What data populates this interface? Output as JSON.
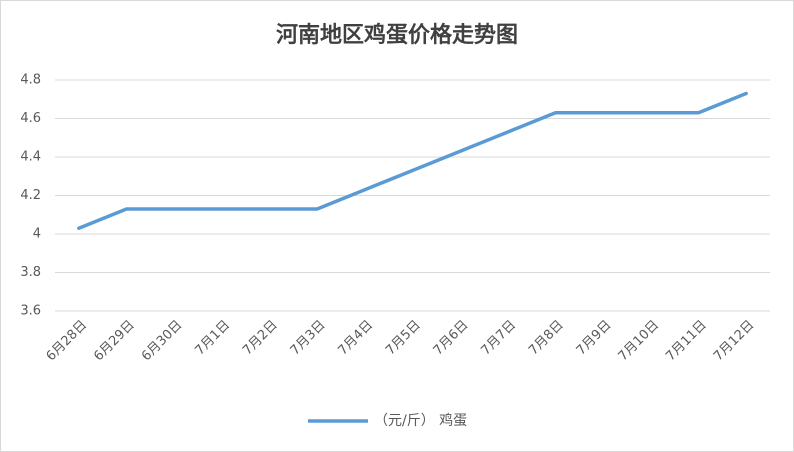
{
  "chart_data": {
    "type": "line",
    "title": "河南地区鸡蛋价格走势图",
    "categories": [
      "6月28日",
      "6月29日",
      "6月30日",
      "7月1日",
      "7月2日",
      "7月3日",
      "7月4日",
      "7月5日",
      "7月6日",
      "7月7日",
      "7月8日",
      "7月9日",
      "7月10日",
      "7月11日",
      "7月12日"
    ],
    "series": [
      {
        "name": "（元/斤） 鸡蛋",
        "color": "#5b9bd5",
        "values": [
          4.03,
          4.13,
          4.13,
          4.13,
          4.13,
          4.13,
          4.23,
          4.33,
          4.43,
          4.53,
          4.63,
          4.63,
          4.63,
          4.63,
          4.73
        ]
      }
    ],
    "ylim": [
      3.6,
      4.8
    ],
    "yticks": [
      3.6,
      3.8,
      4,
      4.2,
      4.4,
      4.6,
      4.8
    ],
    "grid": true,
    "legend": "bottom"
  }
}
